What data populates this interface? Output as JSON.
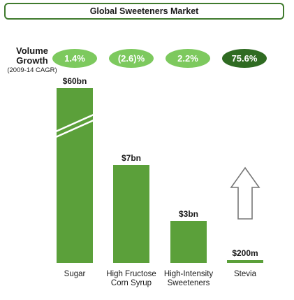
{
  "title": "Global Sweeteners Market",
  "growth_label": {
    "main_line1": "Volume",
    "main_line2": "Growth",
    "sub": "(2009-14 CAGR)"
  },
  "growth": [
    {
      "category": "Sugar",
      "value": "1.4%"
    },
    {
      "category": "High Fructose Corn Syrup",
      "value": "(2.6)%"
    },
    {
      "category": "High-Intensity Sweeteners",
      "value": "2.2%"
    },
    {
      "category": "Stevia",
      "value": "75.6%"
    }
  ],
  "colors": {
    "bar": "#5ba03a",
    "border": "#3f7a2d",
    "pill_light": "#7dc95e",
    "pill_dark": "#2f6b22",
    "arrow": "#777777"
  },
  "chart_data": {
    "type": "bar",
    "title": "Global Sweeteners Market",
    "categories": [
      "Sugar",
      "High Fructose Corn Syrup",
      "High-Intensity Sweeteners",
      "Stevia"
    ],
    "category_lines": [
      [
        "Sugar"
      ],
      [
        "High Fructose",
        "Corn Syrup"
      ],
      [
        "High-Intensity",
        "Sweeteners"
      ],
      [
        "Stevia"
      ]
    ],
    "values": [
      60,
      7,
      3,
      0.2
    ],
    "value_labels": [
      "$60bn",
      "$7bn",
      "$3bn",
      "$200m"
    ],
    "unit": "$bn",
    "axis_break": "Sugar bar is truncated (broken axis)",
    "annotation": "upward arrow above Stevia indicating growth",
    "xlabel": "",
    "ylabel": "",
    "grid": false,
    "legend": "none"
  }
}
